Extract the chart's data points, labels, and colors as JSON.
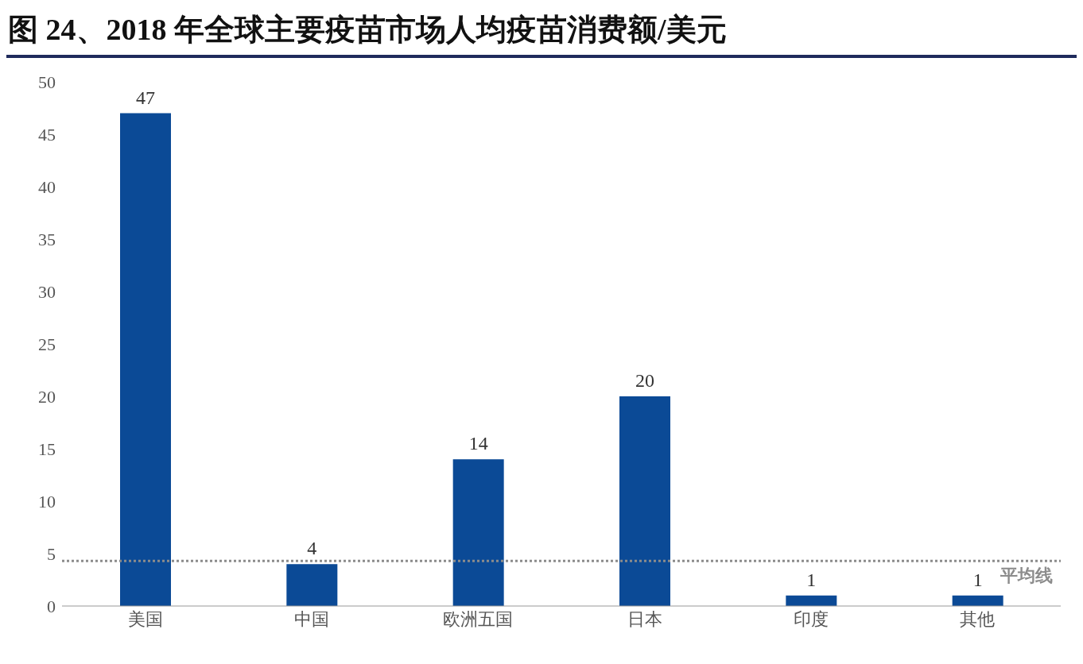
{
  "chart_data": {
    "type": "bar",
    "title": "图 24、2018 年全球主要疫苗市场人均疫苗消费额/美元",
    "categories": [
      "美国",
      "中国",
      "欧洲五国",
      "日本",
      "印度",
      "其他"
    ],
    "values": [
      47,
      4,
      14,
      20,
      1,
      1
    ],
    "color": "#0b4a96",
    "ylim": [
      0,
      50
    ],
    "yticks": [
      0,
      5,
      10,
      15,
      20,
      25,
      30,
      35,
      40,
      45,
      50
    ],
    "grid": false,
    "data_labels": true,
    "ref_lines": [
      {
        "axis": "y",
        "value": 4.3,
        "label": "平均线",
        "color": "#8c8c8c",
        "line_style": "dotted"
      }
    ]
  }
}
